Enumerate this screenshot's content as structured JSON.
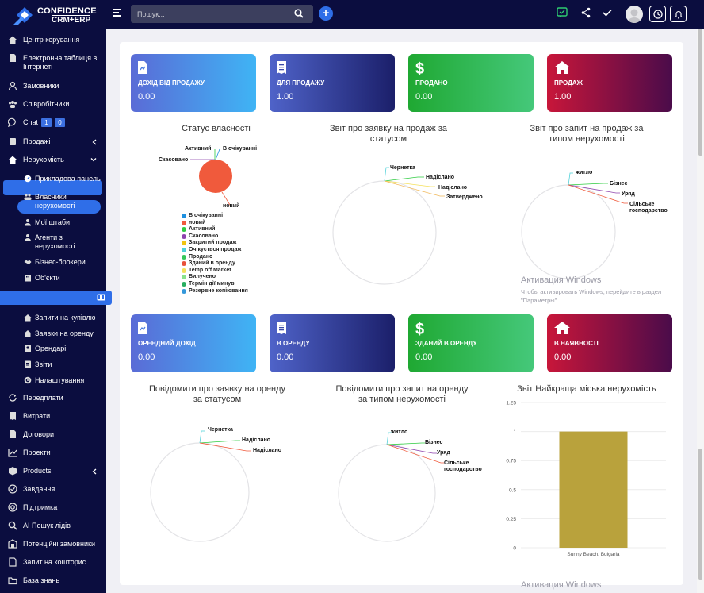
{
  "brand": {
    "line1": "CONFIDENCE",
    "line2": "CRM+ERP"
  },
  "topbar": {
    "search_placeholder": "Пошук..."
  },
  "sidebar": {
    "items": [
      {
        "label": "Центр керування"
      },
      {
        "label": "Електронна таблиця в Інтернеті"
      },
      {
        "label": "Замовники"
      },
      {
        "label": "Співробітники"
      },
      {
        "label": "Chat",
        "badges": [
          "1",
          "0"
        ]
      },
      {
        "label": "Продажі"
      },
      {
        "label": "Нерухомість"
      }
    ],
    "real_estate_sub": [
      {
        "label": "Прикладова панель"
      },
      {
        "label": "Власники нерухомості"
      },
      {
        "label": "Мої штаби"
      },
      {
        "label": "Агенти з нерухомості"
      },
      {
        "label": "Бізнес-брокери"
      },
      {
        "label": "Об'єкти"
      },
      {
        "label": "Запити на купівлю"
      },
      {
        "label": "Заявки на оренду"
      },
      {
        "label": "Орендарі"
      },
      {
        "label": "Звіти"
      },
      {
        "label": "Налаштування"
      }
    ],
    "items_bottom": [
      {
        "label": "Передплати"
      },
      {
        "label": "Витрати"
      },
      {
        "label": "Договори"
      },
      {
        "label": "Проекти"
      },
      {
        "label": "Products"
      },
      {
        "label": "Завдання"
      },
      {
        "label": "Підтримка"
      },
      {
        "label": "AI Пошук лідів"
      },
      {
        "label": "Потенційні замовники"
      },
      {
        "label": "Запит на кошторис"
      },
      {
        "label": "База знань"
      }
    ]
  },
  "stats_top": [
    {
      "title": "ДОХІД ВІД ПРОДАЖУ",
      "value": "0.00"
    },
    {
      "title": "ДЛЯ ПРОДАЖУ",
      "value": "1.00"
    },
    {
      "title": "ПРОДАНО",
      "value": "0.00"
    },
    {
      "title": "ПРОДАЖ",
      "value": "1.00"
    }
  ],
  "stats_bottom": [
    {
      "title": "ОРЕНДНИЙ ДОХІД",
      "value": "0.00"
    },
    {
      "title": "В ОРЕНДУ",
      "value": "0.00"
    },
    {
      "title": "ЗДАНИЙ В ОРЕНДУ",
      "value": "0.00"
    },
    {
      "title": "В НАЯВНОСТІ",
      "value": "0.00"
    }
  ],
  "charts": {
    "property_status": {
      "title": "Статус власності",
      "labels": [
        "Активний",
        "В очікуванні",
        "Скасовано",
        "новий"
      ],
      "legend": [
        {
          "label": "В очікуванні",
          "color": "#1e90e0"
        },
        {
          "label": "новий",
          "color": "#f05a3c"
        },
        {
          "label": "Активний",
          "color": "#2ecc40"
        },
        {
          "label": "Скасовано",
          "color": "#8e44ad"
        },
        {
          "label": "Закритий продаж",
          "color": "#f1c40f"
        },
        {
          "label": "Очікується продаж",
          "color": "#4fd1d9"
        },
        {
          "label": "Продано",
          "color": "#34c759"
        },
        {
          "label": "Зданий в оренду",
          "color": "#e8503a"
        },
        {
          "label": "Temp off Market",
          "color": "#f5e05a"
        },
        {
          "label": "Вилучено",
          "color": "#8be28b"
        },
        {
          "label": "Термін дії минув",
          "color": "#27ae60"
        },
        {
          "label": "Резервне копіювання",
          "color": "#3498db"
        }
      ]
    },
    "sale_by_status": {
      "title1": "Звіт про заявку на продаж за",
      "title2": "статусом",
      "labels": [
        "Чернетка",
        "Надіслано",
        "Надіслано",
        "Затверджено"
      ]
    },
    "sale_by_type": {
      "title1": "Звіт про запит на продаж за",
      "title2": "типом нерухомості",
      "labels": [
        "житло",
        "Бізнес",
        "Уряд",
        "Сільське",
        "господарство"
      ]
    },
    "rent_by_status": {
      "title1": "Повідомити про заявку на оренду",
      "title2": "за статусом",
      "labels": [
        "Чернетка",
        "Надіслано",
        "Надіслано"
      ]
    },
    "rent_by_type": {
      "title1": "Повідомити про запит на оренду",
      "title2": "за типом нерухомості",
      "labels": [
        "житло",
        "Бізнес",
        "Уряд",
        "Сільське",
        "господарство"
      ]
    }
  },
  "chart_data": {
    "type": "bar",
    "title": "Звіт Найкраща міська нерухомість",
    "categories": [
      "Sunny Beach, Bulgaria"
    ],
    "values": [
      1
    ],
    "ylim": [
      0,
      1.25
    ],
    "yticks": [
      "1.25",
      "1",
      "0.75",
      "0.5",
      "0.25",
      "0"
    ],
    "color": "#b9a23c"
  },
  "watermark": {
    "title": "Активация Windows",
    "line1": "Чтобы активировать Windows, перейдите в раздел",
    "line2": "\"Параметры\".",
    "title_bottom": "Активация Windows"
  }
}
